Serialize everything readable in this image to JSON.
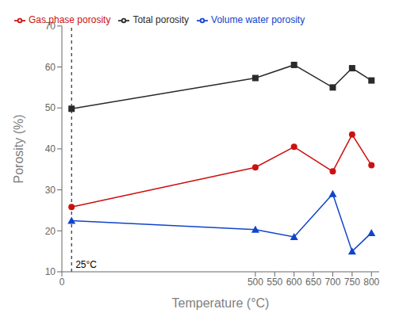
{
  "chart_data": {
    "type": "line",
    "x": [
      25,
      500,
      600,
      700,
      750,
      800
    ],
    "series": [
      {
        "name": "Total porosity",
        "color": "#2b2b2b",
        "marker": "square",
        "values": [
          49.8,
          57.3,
          60.5,
          55.0,
          59.7,
          56.7
        ]
      },
      {
        "name": "Gas phase porosity",
        "color": "#cc1111",
        "marker": "circle",
        "values": [
          25.8,
          35.5,
          40.5,
          34.5,
          43.5,
          36.0
        ]
      },
      {
        "name": "Volume water porosity",
        "color": "#1144cc",
        "marker": "triangle",
        "values": [
          22.5,
          20.3,
          18.5,
          29.0,
          15.0,
          19.5
        ]
      }
    ],
    "xlabel": "Temperature (°C)",
    "ylabel": "Porosity (%)",
    "xlim": [
      0,
      820
    ],
    "xticks": [
      0,
      500,
      550,
      600,
      650,
      700,
      750,
      800
    ],
    "ylim": [
      10,
      70
    ],
    "yticks": [
      10,
      20,
      30,
      40,
      50,
      60,
      70
    ],
    "annotations": [
      {
        "text": "25°C",
        "x": 25
      }
    ],
    "legend": "upper left",
    "grid": false
  }
}
